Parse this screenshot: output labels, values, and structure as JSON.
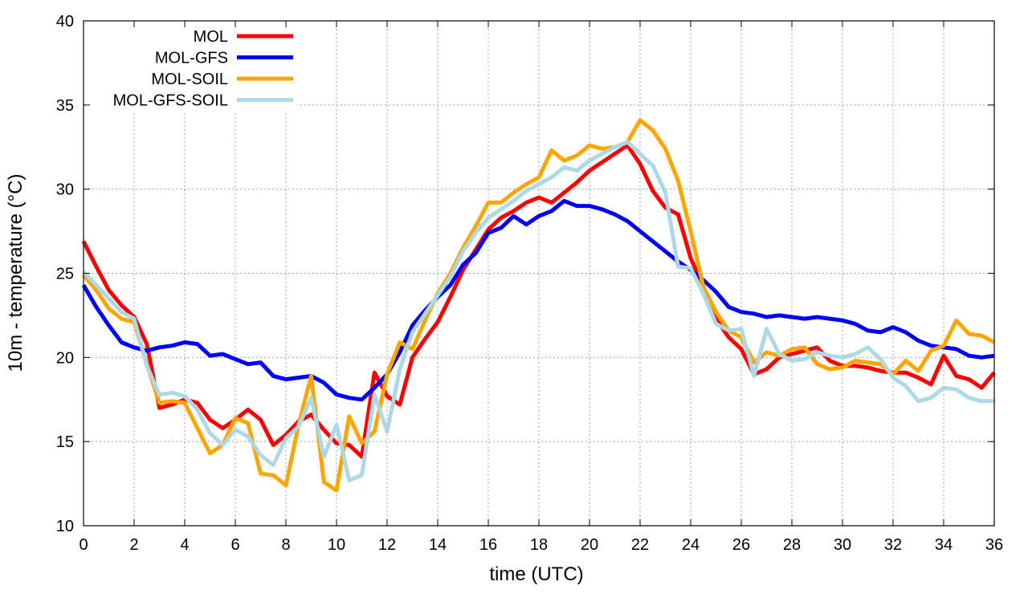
{
  "chart_data": {
    "type": "line",
    "title": "",
    "xlabel": "time (UTC)",
    "ylabel": "10m - temperature (°C)",
    "xlim": [
      0,
      36
    ],
    "ylim": [
      10,
      40
    ],
    "xticks": [
      0,
      2,
      4,
      6,
      8,
      10,
      12,
      14,
      16,
      18,
      20,
      22,
      24,
      26,
      28,
      30,
      32,
      34,
      36
    ],
    "yticks": [
      10,
      15,
      20,
      25,
      30,
      35,
      40
    ],
    "grid": true,
    "legend_position": "top-left",
    "series": [
      {
        "name": "MOL",
        "color": "#ff0000",
        "x": [
          0,
          0.5,
          1,
          1.5,
          2,
          2.5,
          3,
          3.5,
          4,
          4.5,
          5,
          5.5,
          6,
          6.5,
          7,
          7.5,
          8,
          8.5,
          9,
          9.5,
          10,
          10.5,
          11,
          11.5,
          12,
          12.5,
          13,
          13.5,
          14,
          14.5,
          15,
          15.5,
          16,
          16.5,
          17,
          17.5,
          18,
          18.5,
          19,
          19.5,
          20,
          20.5,
          21,
          21.5,
          22,
          22.5,
          23,
          23.5,
          24,
          24.5,
          25,
          25.5,
          26,
          26.5,
          27,
          27.5,
          28,
          28.5,
          29,
          29.5,
          30,
          30.5,
          31,
          31.5,
          32,
          32.5,
          33,
          33.5,
          34,
          34.5,
          35,
          35.5,
          36
        ],
        "values": [
          26.9,
          25.4,
          24.0,
          23.1,
          22.4,
          20.8,
          17.0,
          17.2,
          17.5,
          17.3,
          16.3,
          15.8,
          16.3,
          16.9,
          16.3,
          14.8,
          15.4,
          16.2,
          16.6,
          15.7,
          14.9,
          14.8,
          14.1,
          19.1,
          17.7,
          17.2,
          20.0,
          21.1,
          22.1,
          23.6,
          25.2,
          26.4,
          27.6,
          28.3,
          28.7,
          29.2,
          29.5,
          29.2,
          29.8,
          30.4,
          31.1,
          31.6,
          32.1,
          32.6,
          31.5,
          29.9,
          28.9,
          28.5,
          25.9,
          24.2,
          22.3,
          21.2,
          20.5,
          19.0,
          19.3,
          20.0,
          20.2,
          20.4,
          20.6,
          19.8,
          19.5,
          19.5,
          19.4,
          19.2,
          19.1,
          19.1,
          18.8,
          18.4,
          20.1,
          18.9,
          18.7,
          18.2,
          19.1
        ]
      },
      {
        "name": "MOL-GFS",
        "color": "#0000ff",
        "x": [
          0,
          0.5,
          1,
          1.5,
          2,
          2.5,
          3,
          3.5,
          4,
          4.5,
          5,
          5.5,
          6,
          6.5,
          7,
          7.5,
          8,
          8.5,
          9,
          9.5,
          10,
          10.5,
          11,
          11.5,
          12,
          12.5,
          13,
          13.5,
          14,
          14.5,
          15,
          15.5,
          16,
          16.5,
          17,
          17.5,
          18,
          18.5,
          19,
          19.5,
          20,
          20.5,
          21,
          21.5,
          22,
          22.5,
          23,
          23.5,
          24,
          24.5,
          25,
          25.5,
          26,
          26.5,
          27,
          27.5,
          28,
          28.5,
          29,
          29.5,
          30,
          30.5,
          31,
          31.5,
          32,
          32.5,
          33,
          33.5,
          34,
          34.5,
          35,
          35.5,
          36
        ],
        "values": [
          24.3,
          23.0,
          21.9,
          20.9,
          20.6,
          20.4,
          20.6,
          20.7,
          20.9,
          20.8,
          20.1,
          20.2,
          19.9,
          19.6,
          19.7,
          18.9,
          18.7,
          18.8,
          18.9,
          18.5,
          17.8,
          17.6,
          17.5,
          18.2,
          19.0,
          20.3,
          21.9,
          22.8,
          23.6,
          24.3,
          25.5,
          26.2,
          27.4,
          27.7,
          28.4,
          27.9,
          28.4,
          28.7,
          29.3,
          29.0,
          29.0,
          28.8,
          28.5,
          28.1,
          27.5,
          26.9,
          26.3,
          25.7,
          25.2,
          24.6,
          23.9,
          23.0,
          22.7,
          22.6,
          22.4,
          22.5,
          22.4,
          22.3,
          22.4,
          22.3,
          22.2,
          22.0,
          21.6,
          21.5,
          21.8,
          21.5,
          21.0,
          20.7,
          20.6,
          20.5,
          20.1,
          20.0,
          20.1
        ]
      },
      {
        "name": "MOL-SOIL",
        "color": "#ffa500",
        "x": [
          0,
          0.5,
          1,
          1.5,
          2,
          2.5,
          3,
          3.5,
          4,
          4.5,
          5,
          5.5,
          6,
          6.5,
          7,
          7.5,
          8,
          8.5,
          9,
          9.5,
          10,
          10.5,
          11,
          11.5,
          12,
          12.5,
          13,
          13.5,
          14,
          14.5,
          15,
          15.5,
          16,
          16.5,
          17,
          17.5,
          18,
          18.5,
          19,
          19.5,
          20,
          20.5,
          21,
          21.5,
          22,
          22.5,
          23,
          23.5,
          24,
          24.5,
          25,
          25.5,
          26,
          26.5,
          27,
          27.5,
          28,
          28.5,
          29,
          29.5,
          30,
          30.5,
          31,
          31.5,
          32,
          32.5,
          33,
          33.5,
          34,
          34.5,
          35,
          35.5,
          36
        ],
        "values": [
          24.9,
          24.0,
          22.9,
          22.3,
          22.1,
          19.6,
          17.3,
          17.4,
          17.3,
          15.8,
          14.3,
          14.8,
          16.4,
          16.1,
          13.1,
          13.0,
          12.4,
          16.0,
          18.9,
          12.6,
          12.1,
          16.5,
          14.9,
          15.6,
          19.0,
          20.9,
          20.5,
          22.2,
          23.8,
          25.0,
          26.5,
          27.8,
          29.2,
          29.2,
          29.8,
          30.3,
          30.7,
          32.3,
          31.7,
          32.0,
          32.6,
          32.4,
          32.5,
          32.8,
          34.1,
          33.5,
          32.4,
          30.5,
          27.5,
          24.2,
          22.7,
          21.6,
          21.2,
          19.7,
          20.3,
          20.1,
          20.5,
          20.6,
          19.6,
          19.3,
          19.4,
          19.8,
          19.7,
          19.6,
          19.0,
          19.8,
          19.2,
          20.4,
          20.7,
          22.2,
          21.4,
          21.3,
          20.9
        ]
      },
      {
        "name": "MOL-GFS-SOIL",
        "color": "#add8e6",
        "x": [
          0,
          0.5,
          1,
          1.5,
          2,
          2.5,
          3,
          3.5,
          4,
          4.5,
          5,
          5.5,
          6,
          6.5,
          7,
          7.5,
          8,
          8.5,
          9,
          9.5,
          10,
          10.5,
          11,
          11.5,
          12,
          12.5,
          13,
          13.5,
          14,
          14.5,
          15,
          15.5,
          16,
          16.5,
          17,
          17.5,
          18,
          18.5,
          19,
          19.5,
          20,
          20.5,
          21,
          21.5,
          22,
          22.5,
          23,
          23.5,
          24,
          24.5,
          25,
          25.5,
          26,
          26.5,
          27,
          27.5,
          28,
          28.5,
          29,
          29.5,
          30,
          30.5,
          31,
          31.5,
          32,
          32.5,
          33,
          33.5,
          34,
          34.5,
          35,
          35.5,
          36
        ],
        "values": [
          25.1,
          24.3,
          23.5,
          22.7,
          22.3,
          19.5,
          17.8,
          17.9,
          17.7,
          16.9,
          15.5,
          14.8,
          15.7,
          15.3,
          14.2,
          13.6,
          15.2,
          15.9,
          17.6,
          14.1,
          16.0,
          12.7,
          13.0,
          17.8,
          15.6,
          19.3,
          21.5,
          22.6,
          23.7,
          24.8,
          26.3,
          27.4,
          28.3,
          28.8,
          29.3,
          29.9,
          30.3,
          30.7,
          31.3,
          31.1,
          31.7,
          32.1,
          32.5,
          32.8,
          32.1,
          31.4,
          29.8,
          25.4,
          25.3,
          23.8,
          22.0,
          21.6,
          21.7,
          18.9,
          21.7,
          20.2,
          19.8,
          19.9,
          20.3,
          20.1,
          20.0,
          20.2,
          20.6,
          19.9,
          18.8,
          18.3,
          17.4,
          17.6,
          18.2,
          18.1,
          17.6,
          17.4,
          17.4
        ]
      }
    ]
  }
}
